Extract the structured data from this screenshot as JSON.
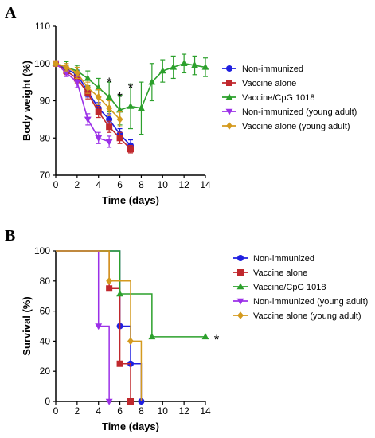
{
  "figure": {
    "panel_a_letter": "A",
    "panel_b_letter": "B"
  },
  "colors": {
    "non_immunized": "#1f1fe0",
    "vaccine_alone": "#c0282d",
    "vaccine_cpg": "#2ca02c",
    "non_immunized_young": "#9b30e8",
    "vaccine_alone_young": "#d49a1e"
  },
  "chart_data": [
    {
      "type": "line",
      "panel": "A",
      "title": "",
      "xlabel": "Time (days)",
      "ylabel": "Body weight (%)",
      "xlim": [
        0,
        14
      ],
      "ylim": [
        70,
        110
      ],
      "xticks": [
        0,
        2,
        4,
        6,
        8,
        10,
        12,
        14
      ],
      "yticks": [
        70,
        80,
        90,
        100,
        110
      ],
      "legend_placement": "right",
      "series": [
        {
          "name": "Non-immunized",
          "color": "#1f1fe0",
          "marker": "circle",
          "x": [
            0,
            1,
            2,
            3,
            4,
            5,
            6,
            7
          ],
          "y": [
            100,
            98.5,
            97,
            92.5,
            88,
            85,
            81,
            78
          ],
          "err": [
            0.5,
            1,
            1.2,
            1.5,
            1.5,
            1.5,
            1.5,
            1.5
          ]
        },
        {
          "name": "Vaccine alone",
          "color": "#c0282d",
          "marker": "square",
          "x": [
            0,
            1,
            2,
            3,
            4,
            5,
            6,
            7
          ],
          "y": [
            100,
            98,
            96,
            92,
            87,
            83,
            80,
            77
          ],
          "err": [
            0.5,
            1,
            1.2,
            1.5,
            1.5,
            1.5,
            1.5,
            1
          ]
        },
        {
          "name": "Vaccine/CpG 1018",
          "color": "#2ca02c",
          "marker": "triangle-up",
          "x": [
            0,
            1,
            2,
            3,
            4,
            5,
            6,
            7,
            8,
            9,
            10,
            11,
            12,
            13,
            14
          ],
          "y": [
            100,
            99,
            98,
            96,
            93.5,
            91,
            87.5,
            88.5,
            88,
            95,
            98,
            99,
            100,
            99.5,
            99
          ],
          "err": [
            0.5,
            1.5,
            1.5,
            2,
            2.5,
            4,
            4,
            6,
            7,
            5,
            3,
            3,
            2.5,
            2.5,
            2.5
          ]
        },
        {
          "name": "Non-immunized (young adult)",
          "color": "#9b30e8",
          "marker": "triangle-down",
          "x": [
            0,
            1,
            2,
            3,
            4,
            5
          ],
          "y": [
            100,
            97.5,
            95,
            85,
            80,
            79
          ],
          "err": [
            0.5,
            1,
            1.5,
            1.5,
            1.5,
            1.5
          ]
        },
        {
          "name": "Vaccine alone (young adult)",
          "color": "#d49a1e",
          "marker": "diamond",
          "x": [
            0,
            1,
            2,
            3,
            4,
            5,
            6
          ],
          "y": [
            100,
            99,
            97.5,
            93.5,
            91,
            88,
            85
          ],
          "err": [
            0.5,
            1,
            1.5,
            1.5,
            2,
            2,
            2
          ]
        }
      ],
      "annotations": [
        {
          "text": "*",
          "x": 5,
          "y": 95.5
        },
        {
          "text": "*",
          "x": 6,
          "y": 91.5
        },
        {
          "text": "*",
          "x": 7,
          "y": 94
        }
      ]
    },
    {
      "type": "line",
      "panel": "B",
      "step": true,
      "title": "",
      "xlabel": "Time (days)",
      "ylabel": "Survival (%)",
      "xlim": [
        0,
        14
      ],
      "ylim": [
        0,
        100
      ],
      "xticks": [
        0,
        2,
        4,
        6,
        8,
        10,
        12,
        14
      ],
      "yticks": [
        0,
        20,
        40,
        60,
        80,
        100
      ],
      "legend_placement": "right",
      "series": [
        {
          "name": "Non-immunized",
          "color": "#1f1fe0",
          "marker": "circle",
          "steps": [
            [
              0,
              100
            ],
            [
              6,
              50
            ],
            [
              7,
              25
            ],
            [
              8,
              0
            ]
          ],
          "markers": [
            [
              6,
              50
            ],
            [
              7,
              25
            ],
            [
              8,
              0
            ]
          ]
        },
        {
          "name": "Vaccine alone",
          "color": "#c0282d",
          "marker": "square",
          "steps": [
            [
              0,
              100
            ],
            [
              5,
              75
            ],
            [
              6,
              25
            ],
            [
              7,
              0
            ]
          ],
          "markers": [
            [
              5,
              75
            ],
            [
              6,
              25
            ],
            [
              7,
              0
            ]
          ]
        },
        {
          "name": "Vaccine/CpG 1018",
          "color": "#2ca02c",
          "marker": "triangle-up",
          "steps": [
            [
              0,
              100
            ],
            [
              6,
              71.4
            ],
            [
              9,
              42.9
            ],
            [
              14,
              42.9
            ]
          ],
          "markers": [
            [
              6,
              71.4
            ],
            [
              9,
              42.9
            ],
            [
              14,
              42.9
            ]
          ]
        },
        {
          "name": "Non-immunized (young adult)",
          "color": "#9b30e8",
          "marker": "triangle-down",
          "steps": [
            [
              0,
              100
            ],
            [
              4,
              50
            ],
            [
              5,
              0
            ]
          ],
          "markers": [
            [
              4,
              50
            ],
            [
              5,
              0
            ]
          ]
        },
        {
          "name": "Vaccine alone (young adult)",
          "color": "#d49a1e",
          "marker": "diamond",
          "steps": [
            [
              0,
              100
            ],
            [
              5,
              80
            ],
            [
              7,
              40
            ],
            [
              8,
              0
            ]
          ],
          "markers": [
            [
              5,
              80
            ],
            [
              7,
              40
            ]
          ]
        }
      ],
      "annotations": [
        {
          "text": "*",
          "x": 14,
          "y": 42.9
        }
      ]
    }
  ]
}
